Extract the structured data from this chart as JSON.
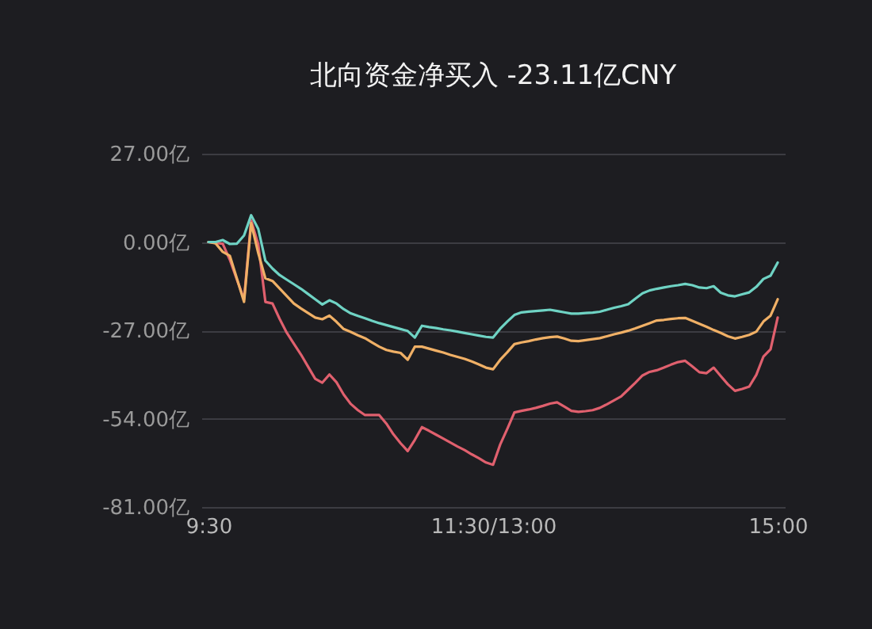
{
  "chart_data": {
    "type": "line",
    "title": "北向资金净买入 -23.11亿CNY",
    "categories": [
      "9:30",
      null,
      null,
      null,
      null,
      null,
      null,
      null,
      null,
      null,
      null,
      null,
      null,
      null,
      null,
      null,
      null,
      null,
      null,
      null,
      null,
      null,
      null,
      null,
      null,
      null,
      null,
      null,
      null,
      null,
      null,
      null,
      null,
      null,
      null,
      null,
      null,
      null,
      null,
      null,
      "11:30/13:00",
      null,
      null,
      null,
      null,
      null,
      null,
      null,
      null,
      null,
      null,
      null,
      null,
      null,
      null,
      null,
      null,
      null,
      null,
      null,
      null,
      null,
      null,
      null,
      null,
      null,
      null,
      null,
      null,
      null,
      null,
      null,
      null,
      null,
      null,
      null,
      null,
      null,
      null,
      null,
      "15:00"
    ],
    "ylim": [
      -81,
      27
    ],
    "yticks": [
      {
        "value": 27,
        "label": "27.00亿"
      },
      {
        "value": 0,
        "label": "0.00亿"
      },
      {
        "value": -27,
        "label": "-27.00亿"
      },
      {
        "value": -54,
        "label": "-54.00亿"
      },
      {
        "value": -81,
        "label": "-81.00亿"
      }
    ],
    "grid": "y",
    "marker": "none",
    "line_style": "solid",
    "series": [
      {
        "color": "#e0606e",
        "values": [
          0,
          -0.3,
          -0.5,
          -5.4,
          -11.5,
          -17.5,
          6.6,
          -0.8,
          -18.3,
          -18.8,
          -23.5,
          -27.7,
          -31.1,
          -34.4,
          -38.1,
          -41.8,
          -43.0,
          -40.5,
          -42.9,
          -46.6,
          -49.5,
          -51.4,
          -52.9,
          -52.9,
          -52.9,
          -55.5,
          -58.8,
          -61.5,
          -63.9,
          -60.5,
          -56.6,
          -57.7,
          -58.9,
          -60.1,
          -61.3,
          -62.5,
          -63.6,
          -64.9,
          -66.1,
          -67.4,
          -68.1,
          -61.9,
          -57.1,
          -52.1,
          -51.6,
          -51.2,
          -50.7,
          -50.1,
          -49.4,
          -49.0,
          -50.3,
          -51.6,
          -51.9,
          -51.7,
          -51.4,
          -50.7,
          -49.6,
          -48.4,
          -47.2,
          -45.1,
          -43.0,
          -40.8,
          -39.7,
          -39.2,
          -38.4,
          -37.5,
          -36.7,
          -36.3,
          -38.0,
          -39.8,
          -40.1,
          -38.4,
          -41.0,
          -43.5,
          -45.5,
          -44.9,
          -44.2,
          -40.6,
          -35.0,
          -32.8,
          -23.1
        ]
      },
      {
        "color": "#f0b066",
        "values": [
          0,
          -0.4,
          -3.0,
          -4.2,
          -11.2,
          -18.3,
          5.8,
          -3.4,
          -11.1,
          -11.9,
          -14.2,
          -16.5,
          -18.8,
          -20.3,
          -21.7,
          -23.1,
          -23.6,
          -22.5,
          -24.4,
          -26.6,
          -27.5,
          -28.5,
          -29.4,
          -30.7,
          -32.0,
          -33.0,
          -33.5,
          -33.9,
          -36.0,
          -32.0,
          -32.0,
          -32.6,
          -33.2,
          -33.8,
          -34.5,
          -35.1,
          -35.7,
          -36.5,
          -37.4,
          -38.4,
          -38.9,
          -36.0,
          -33.7,
          -31.2,
          -30.7,
          -30.3,
          -29.8,
          -29.4,
          -29.1,
          -28.9,
          -29.5,
          -30.2,
          -30.3,
          -30.0,
          -29.7,
          -29.4,
          -28.8,
          -28.2,
          -27.7,
          -27.1,
          -26.4,
          -25.6,
          -24.8,
          -24.0,
          -23.8,
          -23.5,
          -23.3,
          -23.2,
          -24.1,
          -25.0,
          -25.9,
          -26.9,
          -27.8,
          -28.8,
          -29.5,
          -29.0,
          -28.4,
          -27.4,
          -24.3,
          -22.5,
          -17.5
        ]
      },
      {
        "color": "#6fd3c4",
        "values": [
          0,
          0,
          0.6,
          -0.6,
          -0.5,
          2,
          8.2,
          4,
          -5.7,
          -8.1,
          -10.1,
          -11.5,
          -12.9,
          -14.3,
          -15.9,
          -17.5,
          -19.1,
          -17.8,
          -18.8,
          -20.5,
          -21.8,
          -22.6,
          -23.3,
          -24.1,
          -24.8,
          -25.4,
          -26.0,
          -26.6,
          -27.2,
          -29.2,
          -25.6,
          -26.0,
          -26.3,
          -26.7,
          -27.0,
          -27.4,
          -27.8,
          -28.2,
          -28.6,
          -29.0,
          -29.2,
          -26.5,
          -24.3,
          -22.3,
          -21.5,
          -21.3,
          -21.1,
          -20.9,
          -20.7,
          -21.1,
          -21.5,
          -21.9,
          -21.9,
          -21.7,
          -21.6,
          -21.3,
          -20.7,
          -20.1,
          -19.6,
          -19.0,
          -17.3,
          -15.7,
          -14.8,
          -14.3,
          -13.9,
          -13.5,
          -13.2,
          -12.8,
          -13.2,
          -13.9,
          -14.1,
          -13.5,
          -15.5,
          -16.3,
          -16.6,
          -16.0,
          -15.4,
          -13.7,
          -11.3,
          -10.3,
          -6.3
        ]
      }
    ]
  }
}
